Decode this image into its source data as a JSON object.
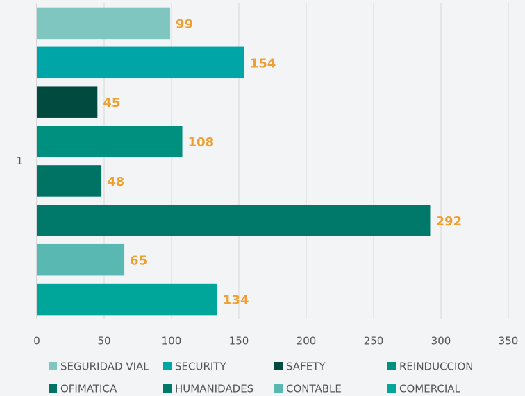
{
  "chart_data": {
    "type": "hbar",
    "categories": [
      "1"
    ],
    "series": [
      {
        "name": "SEGURIDAD VIAL",
        "color": "#7fc6c1",
        "values": [
          99
        ]
      },
      {
        "name": "SECURITY",
        "color": "#00a5a8",
        "values": [
          154
        ]
      },
      {
        "name": "SAFETY",
        "color": "#004a40",
        "values": [
          45
        ]
      },
      {
        "name": "REINDUCCION",
        "color": "#00907f",
        "values": [
          108
        ]
      },
      {
        "name": "OFIMATICA",
        "color": "#007364",
        "values": [
          48
        ]
      },
      {
        "name": "HUMANIDADES",
        "color": "#00796b",
        "values": [
          292
        ]
      },
      {
        "name": "CONTABLE",
        "color": "#5ab8b3",
        "values": [
          65
        ]
      },
      {
        "name": "COMERCIAL",
        "color": "#00a69a",
        "values": [
          134
        ]
      }
    ],
    "xlim": [
      0,
      350
    ],
    "xticks": [
      0,
      50,
      100,
      150,
      200,
      250,
      300,
      350
    ],
    "grid": true,
    "label_color": "#f0a030",
    "legend": "bottom"
  }
}
